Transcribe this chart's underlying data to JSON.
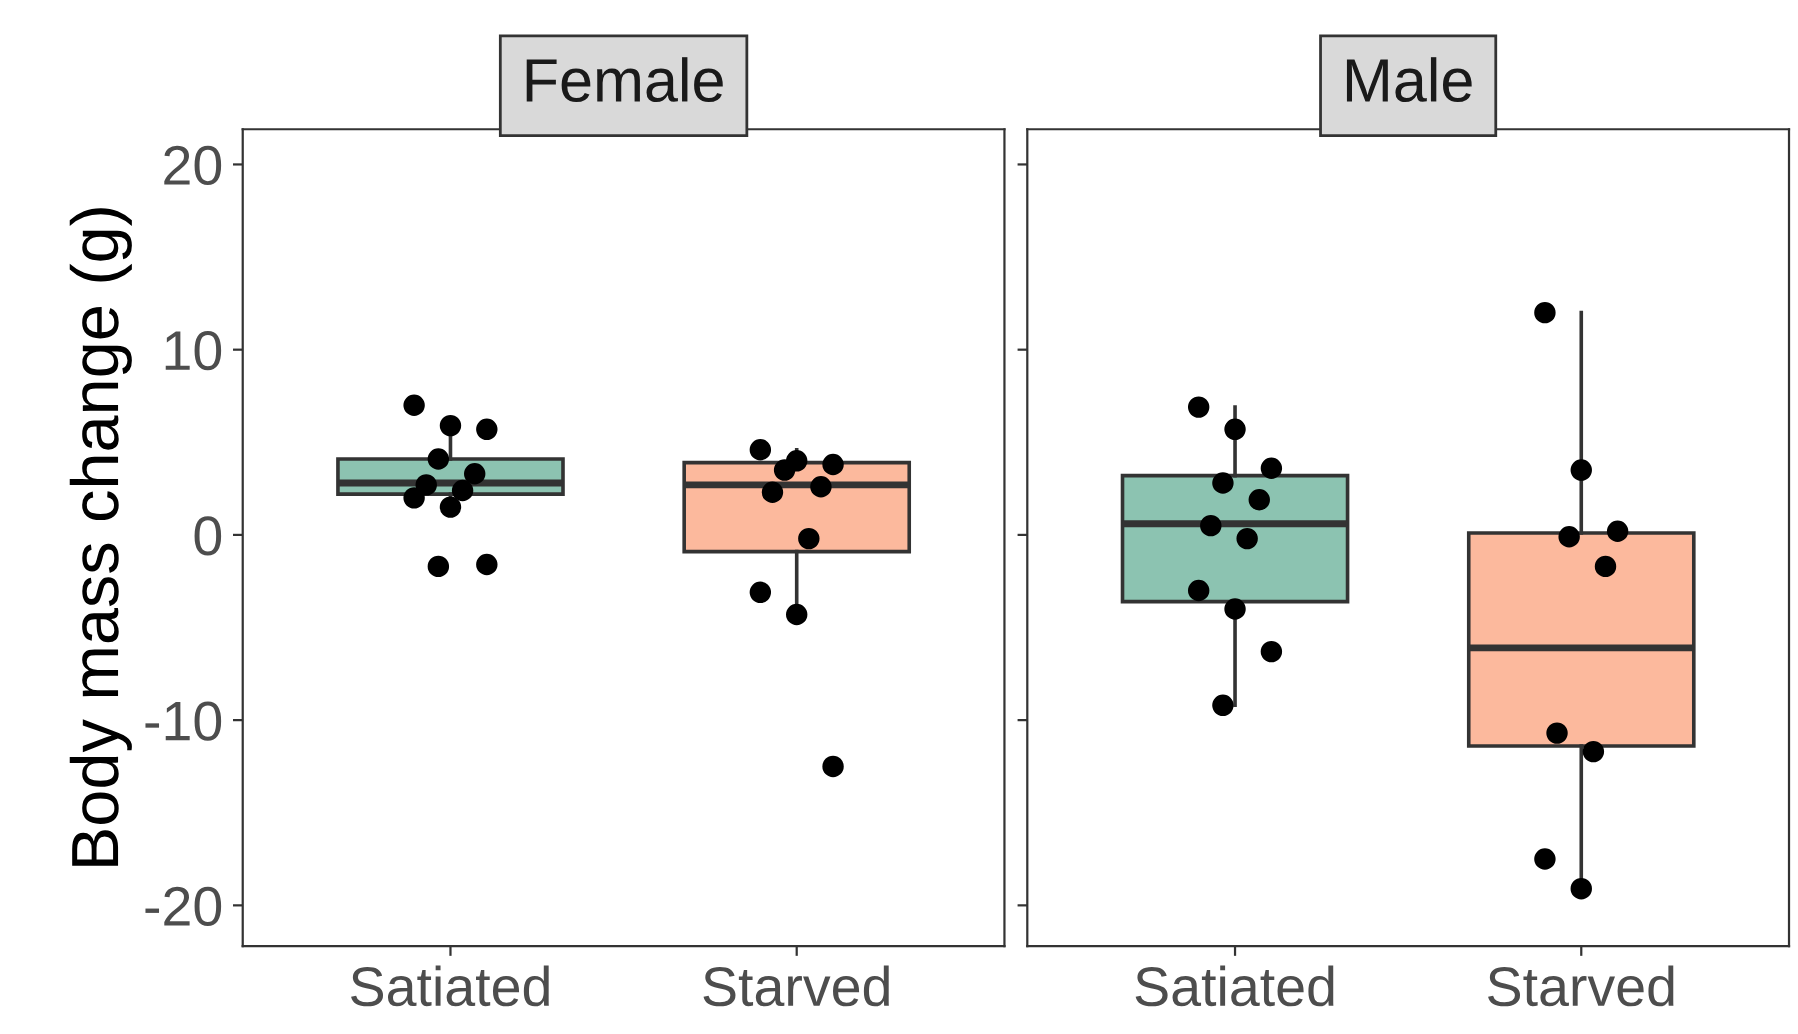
{
  "chart_data": [
    {
      "type": "box",
      "title": "Female",
      "ylabel": "Body mass change (g)",
      "categories": [
        "Satiated",
        "Starved"
      ],
      "colors": [
        "#8cc3b1",
        "#fcb99d"
      ],
      "boxes": [
        {
          "low": 1.5,
          "q1": 2.2,
          "median": 2.8,
          "q3": 4.1,
          "high": 5.9
        },
        {
          "low": -4.3,
          "q1": -0.9,
          "median": 2.7,
          "q3": 3.9,
          "high": 4.6
        }
      ],
      "series": [
        {
          "type": "scatter",
          "color": "#000000",
          "x": [
            "Satiated",
            "Satiated",
            "Satiated",
            "Satiated",
            "Satiated",
            "Satiated",
            "Satiated",
            "Satiated",
            "Satiated",
            "Satiated",
            "Satiated",
            "Starved",
            "Starved",
            "Starved",
            "Starved",
            "Starved",
            "Starved",
            "Starved",
            "Starved",
            "Starved",
            "Starved"
          ],
          "values": [
            7.0,
            5.9,
            5.7,
            4.1,
            3.3,
            2.7,
            2.4,
            2.0,
            1.5,
            -1.6,
            -1.7,
            4.6,
            4.0,
            3.8,
            3.5,
            2.6,
            2.3,
            -0.2,
            -3.1,
            -4.3,
            -12.5
          ]
        }
      ],
      "ylim": [
        -22.2,
        21.9
      ],
      "yticks": [
        -20,
        -10,
        0,
        10,
        20
      ],
      "grid": false
    },
    {
      "type": "box",
      "title": "Male",
      "categories": [
        "Satiated",
        "Starved"
      ],
      "colors": [
        "#8cc3b1",
        "#fcb99d"
      ],
      "boxes": [
        {
          "low": -9.2,
          "q1": -3.6,
          "median": 0.6,
          "q3": 3.2,
          "high": 6.9
        },
        {
          "low": -19.1,
          "q1": -11.4,
          "median": -6.1,
          "q3": 0.1,
          "high": 12.0
        }
      ],
      "series": [
        {
          "type": "scatter",
          "color": "#000000",
          "x": [
            "Satiated",
            "Satiated",
            "Satiated",
            "Satiated",
            "Satiated",
            "Satiated",
            "Satiated",
            "Satiated",
            "Satiated",
            "Satiated",
            "Satiated",
            "Starved",
            "Starved",
            "Starved",
            "Starved",
            "Starved",
            "Starved",
            "Starved",
            "Starved",
            "Starved"
          ],
          "values": [
            6.9,
            5.7,
            3.6,
            2.8,
            1.9,
            0.5,
            -0.2,
            -3.0,
            -4.0,
            -6.3,
            -9.2,
            12.0,
            3.5,
            0.2,
            -0.1,
            -1.7,
            -10.7,
            -11.7,
            -17.5,
            -19.1
          ]
        }
      ],
      "ylim": [
        -22.2,
        21.9
      ],
      "yticks": [
        -20,
        -10,
        0,
        10,
        20
      ],
      "tick_labels": "x",
      "grid": false
    }
  ]
}
